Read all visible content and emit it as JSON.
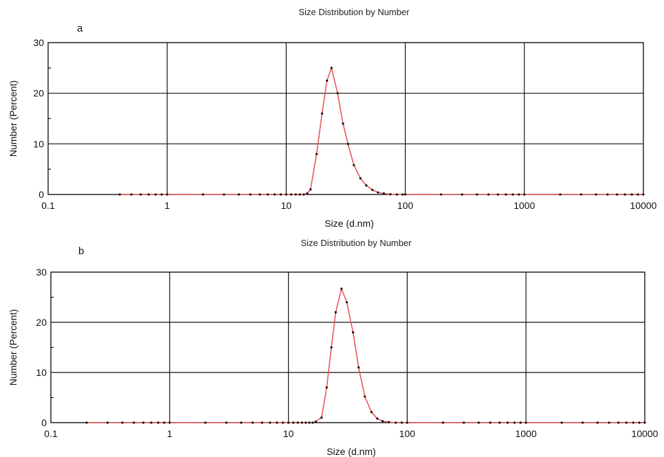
{
  "chart_data": [
    {
      "type": "line",
      "panel": "a",
      "title": "Size Distribution by Number",
      "xlabel": "Size (d.nm)",
      "ylabel": "Number (Percent)",
      "xscale": "log",
      "xlim": [
        0.1,
        10000
      ],
      "ylim": [
        0,
        30
      ],
      "xticks": [
        "0.1",
        "1",
        "10",
        "100",
        "1000",
        "10000"
      ],
      "yticks": [
        "0",
        "10",
        "20",
        "30"
      ],
      "grid": true,
      "line_color": "#e8585c",
      "series": [
        {
          "x": [
            0.4,
            0.5,
            0.6,
            0.7,
            0.8,
            0.9,
            1,
            2,
            3,
            4,
            5,
            6,
            7,
            8,
            9,
            10,
            11,
            12,
            13,
            14,
            15,
            16,
            18,
            20,
            22,
            24,
            27,
            30,
            33,
            37,
            42,
            47,
            53,
            59,
            66,
            75,
            85,
            95,
            100,
            200,
            300,
            400,
            500,
            600,
            700,
            800,
            900,
            1000,
            2000,
            3000,
            4000,
            5000,
            6000,
            7000,
            8000,
            9000,
            10000
          ],
          "y": [
            0,
            0,
            0,
            0,
            0,
            0,
            0,
            0,
            0,
            0,
            0,
            0,
            0,
            0,
            0,
            0,
            0,
            0,
            0,
            0,
            0.2,
            1,
            8,
            16,
            22.5,
            25,
            20,
            14,
            10,
            5.8,
            3.2,
            1.8,
            0.9,
            0.4,
            0.2,
            0.05,
            0,
            0,
            0,
            0,
            0,
            0,
            0,
            0,
            0,
            0,
            0,
            0,
            0,
            0,
            0,
            0,
            0,
            0,
            0,
            0,
            0
          ]
        }
      ]
    },
    {
      "type": "line",
      "panel": "b",
      "title": "Size Distribution by Number",
      "xlabel": "Size (d.nm)",
      "ylabel": "Number (Percent)",
      "xscale": "log",
      "xlim": [
        0.1,
        10000
      ],
      "ylim": [
        0,
        30
      ],
      "xticks": [
        "0.1",
        "1",
        "10",
        "100",
        "1000",
        "10000"
      ],
      "yticks": [
        "0",
        "10",
        "20",
        "30"
      ],
      "grid": true,
      "line_color": "#e8585c",
      "series": [
        {
          "x": [
            0.2,
            0.3,
            0.4,
            0.5,
            0.6,
            0.7,
            0.8,
            0.9,
            1,
            2,
            3,
            4,
            5,
            6,
            7,
            8,
            9,
            10,
            11,
            12,
            13,
            14,
            15,
            16,
            17,
            19,
            21,
            23,
            25,
            28,
            31,
            35,
            39,
            44,
            50,
            56,
            62,
            70,
            80,
            90,
            100,
            200,
            300,
            400,
            500,
            600,
            700,
            800,
            900,
            1000,
            2000,
            3000,
            4000,
            5000,
            6000,
            7000,
            8000,
            9000,
            10000
          ],
          "y": [
            0,
            0,
            0,
            0,
            0,
            0,
            0,
            0,
            0,
            0,
            0,
            0,
            0,
            0,
            0,
            0,
            0,
            0,
            0,
            0,
            0,
            0,
            0,
            0,
            0.2,
            1,
            7,
            15,
            22,
            26.7,
            24,
            18,
            11,
            5.2,
            2.1,
            0.8,
            0.3,
            0.1,
            0,
            0,
            0,
            0,
            0,
            0,
            0,
            0,
            0,
            0,
            0,
            0,
            0,
            0,
            0,
            0,
            0,
            0,
            0,
            0,
            0
          ]
        }
      ]
    }
  ]
}
